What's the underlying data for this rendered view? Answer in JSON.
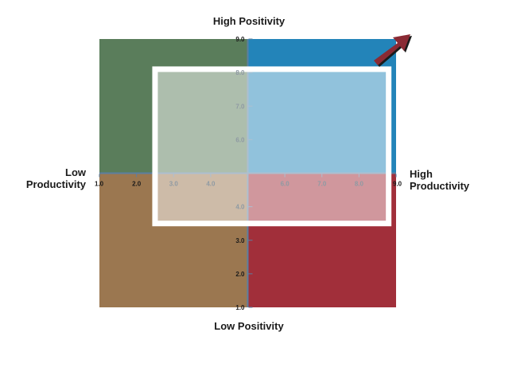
{
  "labels": {
    "top": "High Positivity",
    "bottom": "Low Positivity",
    "left": "Low\nProductivity",
    "right": "High\nProductivity"
  },
  "axes": {
    "x_range": [
      1.0,
      9.0
    ],
    "y_range": [
      1.0,
      9.0
    ],
    "center": [
      5.0,
      5.0
    ],
    "x_ticks": [
      {
        "value": 1.0,
        "label": "1.0",
        "faded": false
      },
      {
        "value": 2.0,
        "label": "2.0",
        "faded": false
      },
      {
        "value": 3.0,
        "label": "3.0",
        "faded": true
      },
      {
        "value": 4.0,
        "label": "4.0",
        "faded": true
      },
      {
        "value": 6.0,
        "label": "6.0",
        "faded": true
      },
      {
        "value": 7.0,
        "label": "7.0",
        "faded": true
      },
      {
        "value": 8.0,
        "label": "8.0",
        "faded": true
      },
      {
        "value": 9.0,
        "label": "9.0",
        "faded": false
      }
    ],
    "y_ticks": [
      {
        "value": 1.0,
        "label": "1.0",
        "faded": false
      },
      {
        "value": 2.0,
        "label": "2.0",
        "faded": false
      },
      {
        "value": 3.0,
        "label": "3.0",
        "faded": false
      },
      {
        "value": 4.0,
        "label": "4.0",
        "faded": true
      },
      {
        "value": 6.0,
        "label": "6.0",
        "faded": true
      },
      {
        "value": 7.0,
        "label": "7.0",
        "faded": true
      },
      {
        "value": 8.0,
        "label": "8.0",
        "faded": true
      },
      {
        "value": 9.0,
        "label": "9.0",
        "faded": false
      }
    ]
  },
  "quadrants": {
    "top_left": "#5a7d5b",
    "top_right": "#2384b9",
    "bottom_left": "#9b7750",
    "bottom_right": "#a12f3a"
  },
  "highlight_box": {
    "x_range": [
      2.5,
      8.8
    ],
    "y_range": [
      3.5,
      8.1
    ],
    "border_color": "#ffffff"
  },
  "arrow_color": "#8a2a34"
}
